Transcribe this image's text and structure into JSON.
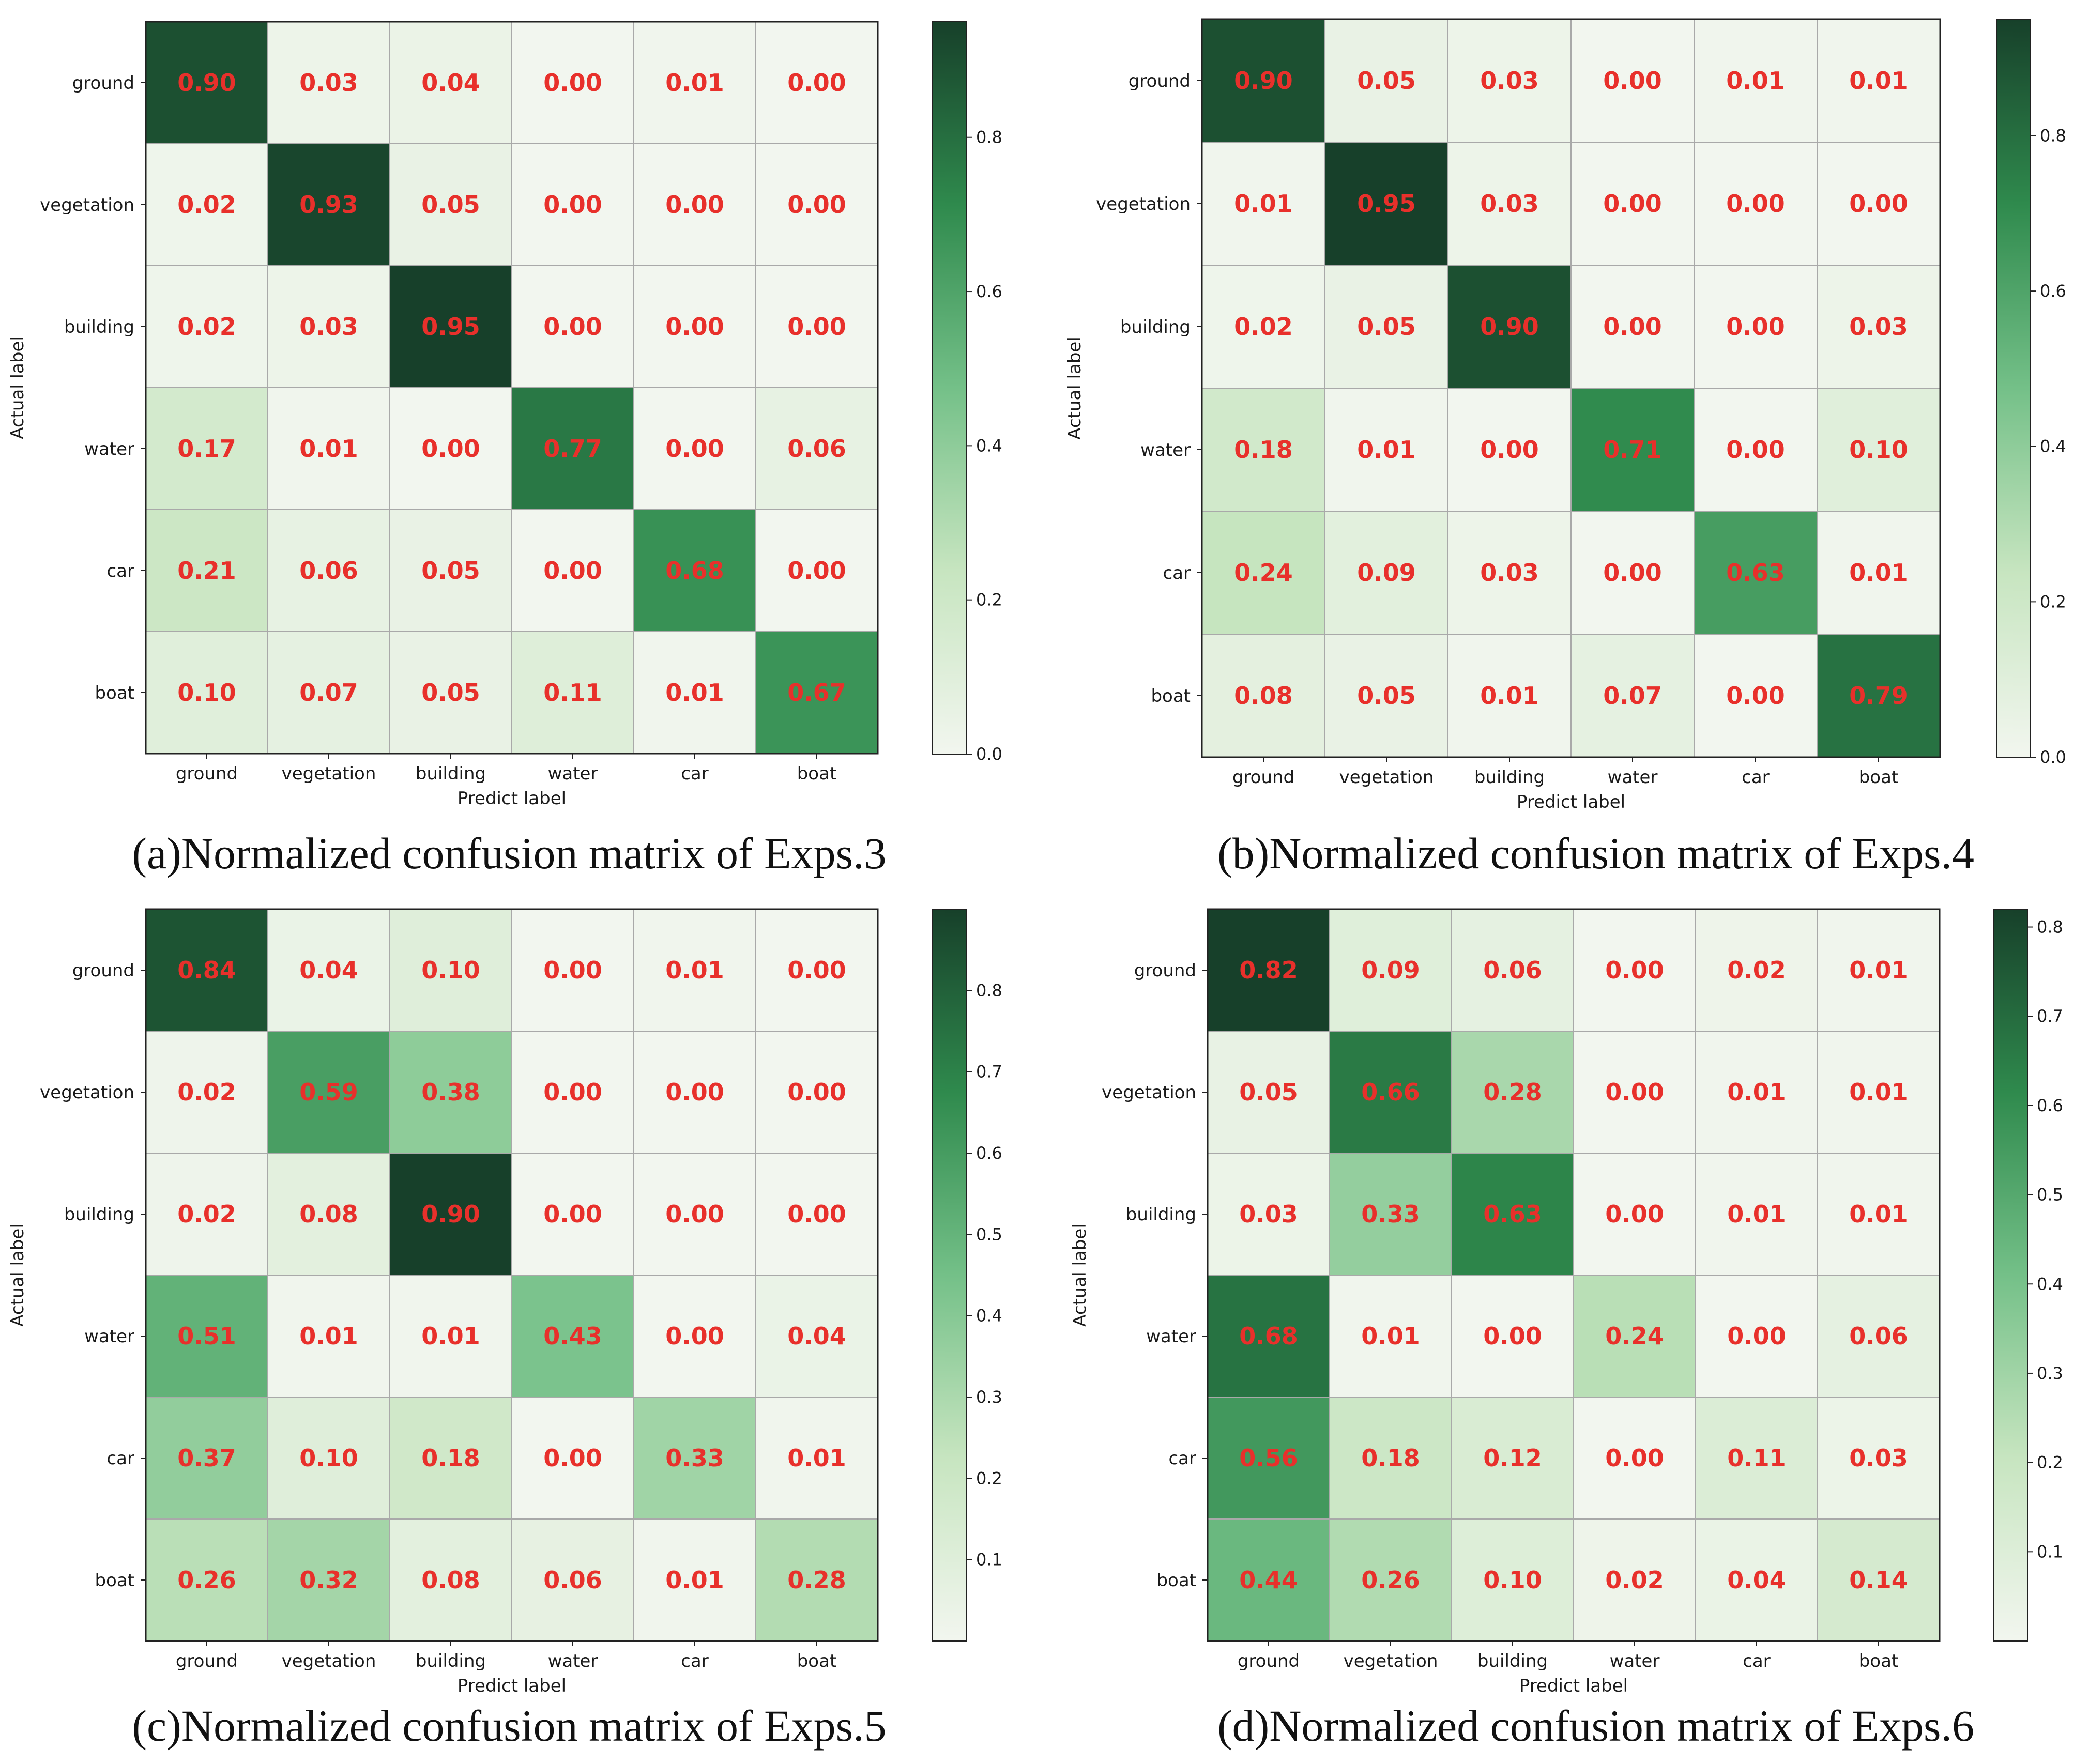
{
  "chart_data": [
    {
      "type": "heatmap",
      "caption": "(a)Normalized confusion matrix of Exps.3",
      "xlabel": "Predict label",
      "ylabel": "Actual label",
      "categories": [
        "ground",
        "vegetation",
        "building",
        "water",
        "car",
        "boat"
      ],
      "matrix": [
        [
          0.9,
          0.03,
          0.04,
          0.0,
          0.01,
          0.0
        ],
        [
          0.02,
          0.93,
          0.05,
          0.0,
          0.0,
          0.0
        ],
        [
          0.02,
          0.03,
          0.95,
          0.0,
          0.0,
          0.0
        ],
        [
          0.17,
          0.01,
          0.0,
          0.77,
          0.0,
          0.06
        ],
        [
          0.21,
          0.06,
          0.05,
          0.0,
          0.68,
          0.0
        ],
        [
          0.1,
          0.07,
          0.05,
          0.11,
          0.01,
          0.67
        ]
      ],
      "colorbar": {
        "min": 0.0,
        "max": 0.95,
        "ticks": [
          "0.0",
          "0.2",
          "0.4",
          "0.6",
          "0.8"
        ]
      }
    },
    {
      "type": "heatmap",
      "caption": "(b)Normalized confusion matrix of Exps.4",
      "xlabel": "Predict label",
      "ylabel": "Actual label",
      "categories": [
        "ground",
        "vegetation",
        "building",
        "water",
        "car",
        "boat"
      ],
      "matrix": [
        [
          0.9,
          0.05,
          0.03,
          0.0,
          0.01,
          0.01
        ],
        [
          0.01,
          0.95,
          0.03,
          0.0,
          0.0,
          0.0
        ],
        [
          0.02,
          0.05,
          0.9,
          0.0,
          0.0,
          0.03
        ],
        [
          0.18,
          0.01,
          0.0,
          0.71,
          0.0,
          0.1
        ],
        [
          0.24,
          0.09,
          0.03,
          0.0,
          0.63,
          0.01
        ],
        [
          0.08,
          0.05,
          0.01,
          0.07,
          0.0,
          0.79
        ]
      ],
      "colorbar": {
        "min": 0.0,
        "max": 0.95,
        "ticks": [
          "0.0",
          "0.2",
          "0.4",
          "0.6",
          "0.8"
        ]
      }
    },
    {
      "type": "heatmap",
      "caption": "(c)Normalized confusion matrix of Exps.5",
      "xlabel": "Predict label",
      "ylabel": "Actual label",
      "categories": [
        "ground",
        "vegetation",
        "building",
        "water",
        "car",
        "boat"
      ],
      "matrix": [
        [
          0.84,
          0.04,
          0.1,
          0.0,
          0.01,
          0.0
        ],
        [
          0.02,
          0.59,
          0.38,
          0.0,
          0.0,
          0.0
        ],
        [
          0.02,
          0.08,
          0.9,
          0.0,
          0.0,
          0.0
        ],
        [
          0.51,
          0.01,
          0.01,
          0.43,
          0.0,
          0.04
        ],
        [
          0.37,
          0.1,
          0.18,
          0.0,
          0.33,
          0.01
        ],
        [
          0.26,
          0.32,
          0.08,
          0.06,
          0.01,
          0.28
        ]
      ],
      "colorbar": {
        "min": 0.0,
        "max": 0.9,
        "ticks": [
          "0.1",
          "0.2",
          "0.3",
          "0.4",
          "0.5",
          "0.6",
          "0.7",
          "0.8"
        ]
      }
    },
    {
      "type": "heatmap",
      "caption": "(d)Normalized confusion matrix of Exps.6",
      "xlabel": "Predict label",
      "ylabel": "Actual label",
      "categories": [
        "ground",
        "vegetation",
        "building",
        "water",
        "car",
        "boat"
      ],
      "matrix": [
        [
          0.82,
          0.09,
          0.06,
          0.0,
          0.02,
          0.01
        ],
        [
          0.05,
          0.66,
          0.28,
          0.0,
          0.01,
          0.01
        ],
        [
          0.03,
          0.33,
          0.63,
          0.0,
          0.01,
          0.01
        ],
        [
          0.68,
          0.01,
          0.0,
          0.24,
          0.0,
          0.06
        ],
        [
          0.56,
          0.18,
          0.12,
          0.0,
          0.11,
          0.03
        ],
        [
          0.44,
          0.26,
          0.1,
          0.02,
          0.04,
          0.14
        ]
      ],
      "colorbar": {
        "min": 0.0,
        "max": 0.82,
        "ticks": [
          "0.1",
          "0.2",
          "0.3",
          "0.4",
          "0.5",
          "0.6",
          "0.7",
          "0.8"
        ]
      }
    }
  ],
  "colors": {
    "low": "#f2f6ef",
    "mid": "#5cb275",
    "high": "#19432a",
    "value_text": "#e8302b"
  }
}
